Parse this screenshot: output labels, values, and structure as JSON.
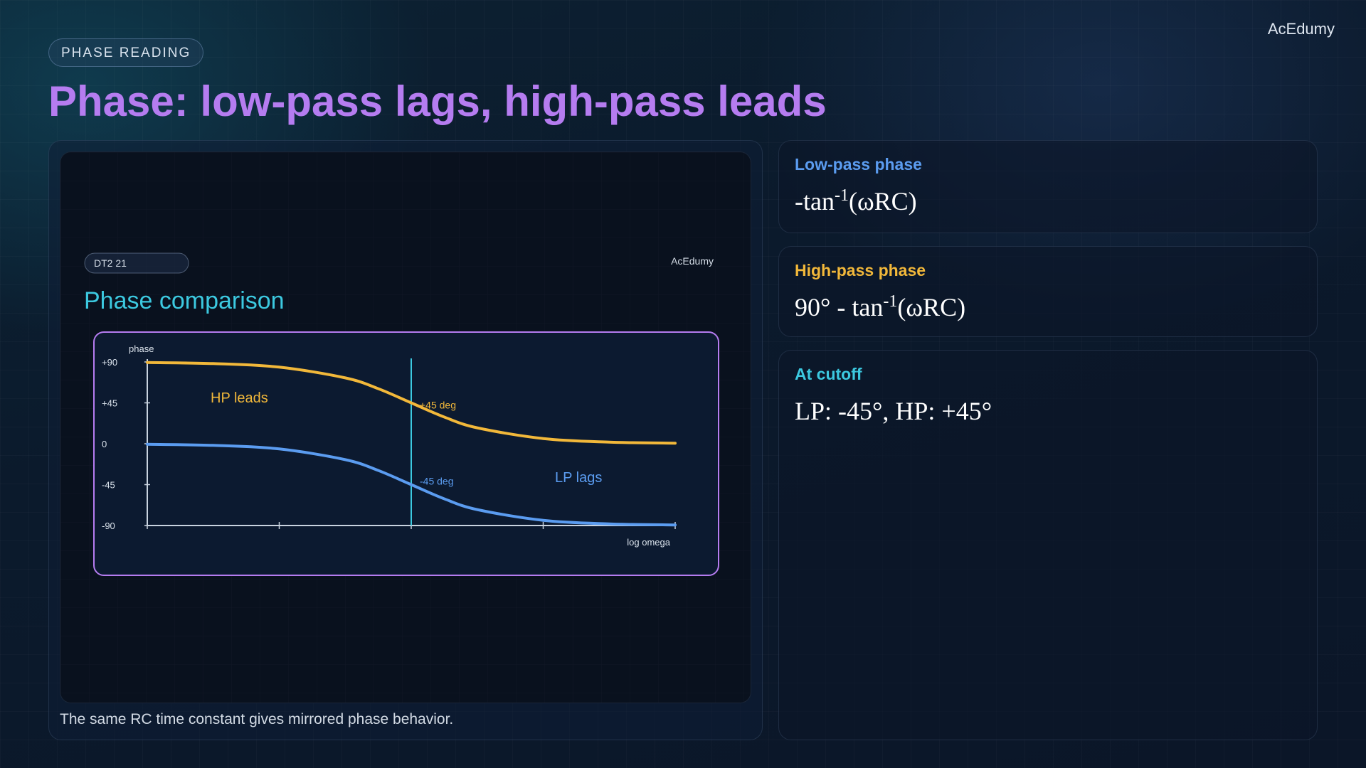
{
  "brand": "AcEdumy",
  "tag": "PHASE READING",
  "title": "Phase: low-pass lags, high-pass leads",
  "caption": "The same RC time constant gives mirrored phase behavior.",
  "figure": {
    "badge": "DT2 21",
    "brand": "AcEdumy",
    "heading": "Phase comparison"
  },
  "cards": [
    {
      "label": "Low-pass phase",
      "formula_pre": "-tan",
      "formula_sup": "-1",
      "formula_post": "(ωRC)",
      "color": "#5b9cf0"
    },
    {
      "label": "High-pass phase",
      "formula_pre": "90° - tan",
      "formula_sup": "-1",
      "formula_post": "(ωRC)",
      "color": "#f2b83a"
    },
    {
      "label": "At cutoff",
      "formula": "LP: -45°, HP: +45°",
      "color": "#3cc9e0"
    }
  ],
  "chart_data": {
    "type": "line",
    "ylabel": "phase",
    "xlabel": "log omega",
    "ylim": [
      -90,
      90
    ],
    "yticks": [
      "+90",
      "+45",
      "0",
      "-45",
      "-90"
    ],
    "ytick_values": [
      90,
      45,
      0,
      -45,
      -90
    ],
    "xlim": [
      -2,
      2
    ],
    "xticks": [
      -2,
      -1,
      0,
      1,
      2
    ],
    "cutoff_x": 0,
    "series": [
      {
        "name": "HP leads",
        "color": "#f2b83a",
        "x": [
          -2,
          -1.5,
          -1,
          -0.5,
          -0.25,
          0,
          0.25,
          0.5,
          1,
          1.5,
          2
        ],
        "y": [
          89.4,
          88.2,
          84.3,
          72.5,
          60.6,
          45,
          29.4,
          17.5,
          5.7,
          1.8,
          0.6
        ]
      },
      {
        "name": "LP lags",
        "color": "#5b9cf0",
        "x": [
          -2,
          -1.5,
          -1,
          -0.5,
          -0.25,
          0,
          0.25,
          0.5,
          1,
          1.5,
          2
        ],
        "y": [
          -0.6,
          -1.8,
          -5.7,
          -17.5,
          -29.4,
          -45,
          -60.6,
          -72.5,
          -84.3,
          -88.2,
          -89.4
        ]
      }
    ],
    "annotations": [
      {
        "text": "+45 deg",
        "x": 0,
        "y": 45,
        "color": "#f2b83a"
      },
      {
        "text": "-45 deg",
        "x": 0,
        "y": -45,
        "color": "#5b9cf0"
      }
    ],
    "series_labels": [
      {
        "text": "HP leads",
        "color": "#f2b83a"
      },
      {
        "text": "LP lags",
        "color": "#5b9cf0"
      }
    ],
    "grid": false,
    "frame_color": "#b57cf0",
    "cutoff_color": "#3cc9e0"
  }
}
